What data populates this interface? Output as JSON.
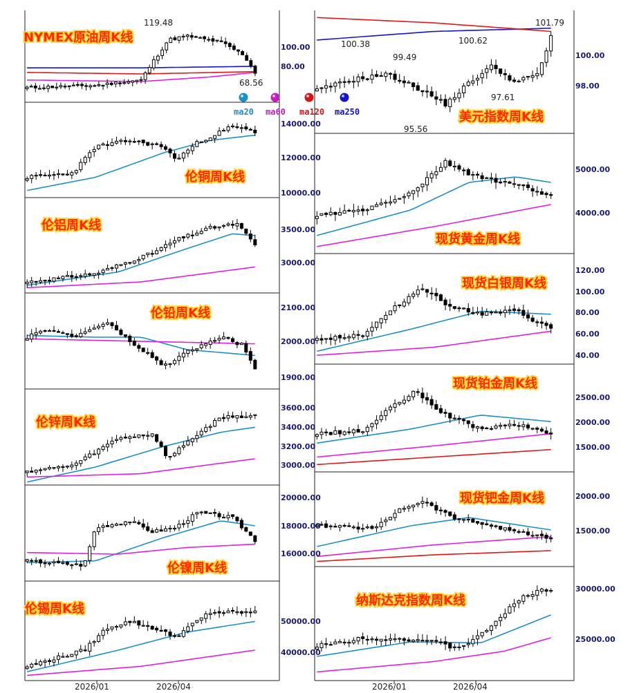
{
  "colors": {
    "ma20": "#1d8fc6",
    "ma60": "#e020e0",
    "ma120": "#e01818",
    "ma250": "#1414c8",
    "title_fill": "#ff2a00",
    "axis_text": "#1a1a6e"
  },
  "legend": [
    {
      "label": "ma20",
      "color": "#1d8fc6"
    },
    {
      "label": "ma60",
      "color": "#c020c0"
    },
    {
      "label": "ma120",
      "color": "#d01818"
    },
    {
      "label": "ma250",
      "color": "#1414c8"
    }
  ],
  "date_labels": [
    "2026/01",
    "2026/04"
  ],
  "chart_data": [
    {
      "title": "NYMEX原油周K线",
      "type": "candlestick",
      "yticks": [
        "100.00",
        "80.00"
      ],
      "ylim": [
        60,
        125
      ],
      "annotations": [
        "119.48",
        "68.56"
      ],
      "highest": 119.48,
      "lowest": 68.56,
      "ma": [
        "ma20",
        "ma60",
        "ma120",
        "ma250"
      ]
    },
    {
      "title": "美元指数周K线",
      "type": "candlestick",
      "yticks": [
        "100.00",
        "98.00"
      ],
      "ylim": [
        95,
        102
      ],
      "annotations": [
        "101.79",
        "100.38",
        "99.49",
        "100.62",
        "95.56",
        "97.61"
      ],
      "highest": 101.79,
      "lowest": 95.56,
      "ma": [
        "ma120",
        "ma250"
      ]
    },
    {
      "title": "伦铜周K线",
      "type": "candlestick",
      "yticks": [
        "14000.00",
        "12000.00",
        "10000.00"
      ],
      "ylim": [
        9500,
        14200
      ],
      "ma": [
        "ma20"
      ]
    },
    {
      "title": "现货黄金周K线",
      "type": "candlestick",
      "yticks": [
        "5000.00",
        "4000.00"
      ],
      "ylim": [
        3300,
        5500
      ],
      "ma": [
        "ma20",
        "ma60"
      ]
    },
    {
      "title": "伦铝周K线",
      "type": "candlestick",
      "yticks": [
        "3500.00",
        "3000.00"
      ],
      "ylim": [
        2800,
        3650
      ],
      "ma": [
        "ma20",
        "ma60"
      ]
    },
    {
      "title": "现货白银周K线",
      "type": "candlestick",
      "yticks": [
        "120.00",
        "100.00",
        "80.00",
        "60.00",
        "40.00"
      ],
      "ylim": [
        35,
        125
      ],
      "ma": [
        "ma20",
        "ma60"
      ]
    },
    {
      "title": "伦铅周K线",
      "type": "candlestick",
      "yticks": [
        "2100.00",
        "2000.00",
        "1900.00"
      ],
      "ylim": [
        1880,
        2140
      ],
      "ma": [
        "ma20",
        "ma60"
      ]
    },
    {
      "title": "现货铂金周K线",
      "type": "candlestick",
      "yticks": [
        "2500.00",
        "2000.00",
        "1500.00"
      ],
      "ylim": [
        1100,
        2900
      ],
      "ma": [
        "ma20",
        "ma60",
        "ma120"
      ]
    },
    {
      "title": "伦锌周K线",
      "type": "candlestick",
      "yticks": [
        "3600.00",
        "3400.00",
        "3200.00",
        "3000.00"
      ],
      "ylim": [
        2950,
        3680
      ],
      "ma": [
        "ma20",
        "ma60"
      ]
    },
    {
      "title": "现货钯金周K线",
      "type": "candlestick",
      "yticks": [
        "2000.00",
        "1500.00"
      ],
      "ylim": [
        950,
        2250
      ],
      "ma": [
        "ma20",
        "ma60",
        "ma120"
      ]
    },
    {
      "title": "伦镍周K线",
      "type": "candlestick",
      "yticks": [
        "20000.00",
        "18000.00",
        "16000.00"
      ],
      "ylim": [
        15300,
        21000
      ],
      "ma": [
        "ma20",
        "ma60"
      ]
    },
    {
      "title": "纳斯达克指数周K线",
      "type": "candlestick",
      "yticks": [
        "30000.00",
        "25000.00"
      ],
      "ylim": [
        21000,
        31500
      ],
      "ma": [
        "ma20",
        "ma60"
      ]
    },
    {
      "title": "伦锡周K线",
      "type": "candlestick",
      "yticks": [
        "50000.00",
        "40000.00"
      ],
      "ylim": [
        33000,
        62000
      ],
      "ma": [
        "ma20",
        "ma60"
      ]
    }
  ]
}
